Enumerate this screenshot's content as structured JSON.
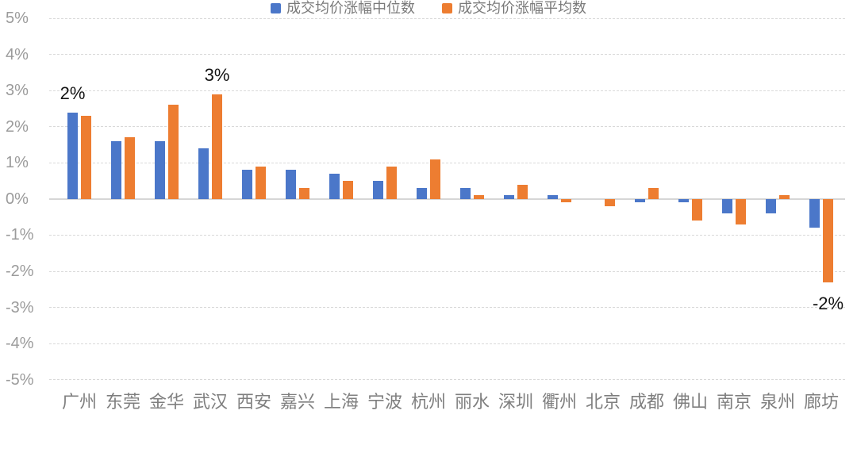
{
  "chart_data": {
    "type": "bar",
    "title": "",
    "xlabel": "",
    "ylabel": "",
    "ylim": [
      -5,
      5
    ],
    "grid": "horizontal-dashed",
    "legend_position": "bottom",
    "y_ticks": [
      "5%",
      "4%",
      "3%",
      "2%",
      "1%",
      "0%",
      "-1%",
      "-2%",
      "-3%",
      "-4%",
      "-5%"
    ],
    "categories": [
      "广州",
      "东莞",
      "金华",
      "武汉",
      "西安",
      "嘉兴",
      "上海",
      "宁波",
      "杭州",
      "丽水",
      "深圳",
      "衢州",
      "北京",
      "成都",
      "佛山",
      "南京",
      "泉州",
      "廊坊"
    ],
    "series": [
      {
        "name": "成交均价涨幅中位数",
        "color": "#4B77C9",
        "values": [
          2.4,
          1.6,
          1.6,
          1.4,
          0.8,
          0.8,
          0.7,
          0.5,
          0.3,
          0.3,
          0.1,
          0.1,
          0,
          -0.1,
          -0.1,
          -0.4,
          -0.4,
          -0.8
        ]
      },
      {
        "name": "成交均价涨幅平均数",
        "color": "#ED7D31",
        "values": [
          2.3,
          1.7,
          2.6,
          2.9,
          0.9,
          0.3,
          0.5,
          0.9,
          1.1,
          0.1,
          0.4,
          -0.1,
          -0.2,
          0.3,
          -0.6,
          -0.7,
          0.1,
          -2.3
        ]
      }
    ],
    "annotations": [
      {
        "text": "2%",
        "category": "广州",
        "series": 0,
        "position": "above"
      },
      {
        "text": "3%",
        "category": "武汉",
        "series": 1,
        "position": "above"
      },
      {
        "text": "-2%",
        "category": "廊坊",
        "series": 1,
        "position": "below"
      }
    ]
  },
  "colors": {
    "background": "#ffffff",
    "gridline": "#d9d9d9",
    "zero_line": "#d6d6d6",
    "y_label": "#9b9b9b",
    "x_label": "#7f7f7f",
    "annotation": "#141414",
    "legend_text": "#7a7a7a"
  }
}
